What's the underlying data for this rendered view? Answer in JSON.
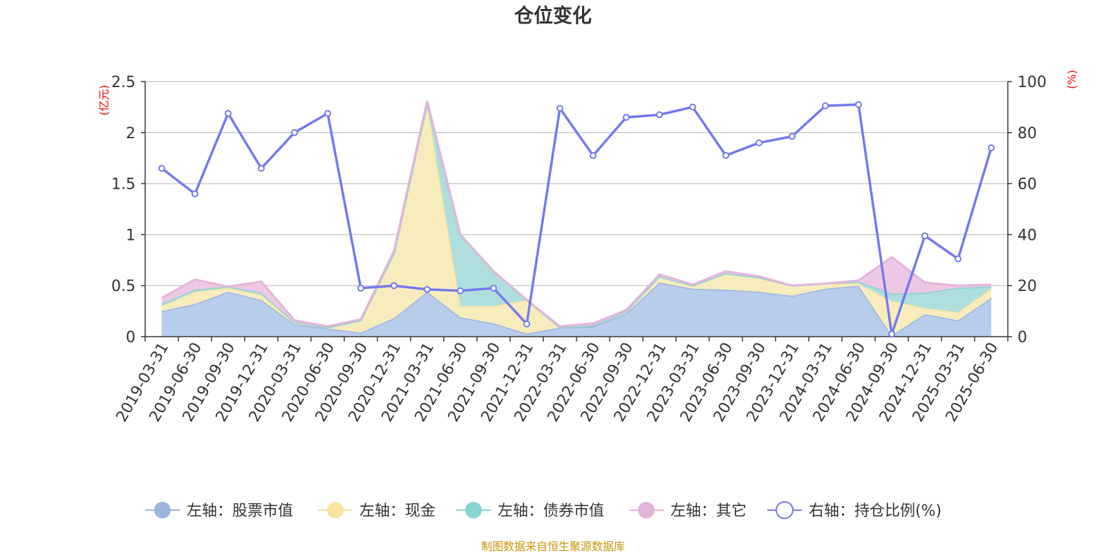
{
  "chart_data": {
    "type": "area",
    "title": "仓位变化",
    "left_unit": "(亿元)",
    "right_unit": "(%)",
    "source": "制图数据来自恒生聚源数据库",
    "x": [
      "2019-03-31",
      "2019-06-30",
      "2019-09-30",
      "2019-12-31",
      "2020-03-31",
      "2020-06-30",
      "2020-09-30",
      "2020-12-31",
      "2021-03-31",
      "2021-06-30",
      "2021-09-30",
      "2021-12-31",
      "2022-03-31",
      "2022-06-30",
      "2022-09-30",
      "2022-12-31",
      "2023-03-31",
      "2023-06-30",
      "2023-09-30",
      "2023-12-31",
      "2024-03-31",
      "2024-06-30",
      "2024-09-30",
      "2024-12-31",
      "2025-03-31",
      "2025-06-30"
    ],
    "x_tick_labels": [
      "2019-03-31",
      "2019-06-30",
      "2019-09-30",
      "2019-12-31",
      "2020-03-31",
      "2020-06-30",
      "2020-09-30",
      "2020-12-31",
      "2021-03-31",
      "2021-06-30",
      "2021-09-30",
      "2021-12-31",
      "2022-03-31",
      "2022-06-30",
      "2022-09-30",
      "2022-12-31",
      "2023-03-31",
      "2023-06-30",
      "2023-09-30",
      "2023-12-31",
      "2024-03-31",
      "2024-06-30",
      "2024-09-30",
      "2024-12-31",
      "2025-03-31",
      "2025-06-30"
    ],
    "left_axis": {
      "ylim": [
        0,
        2.5
      ],
      "ticks": [
        "0",
        "0.5",
        "1",
        "1.5",
        "2",
        "2.5"
      ]
    },
    "right_axis": {
      "ylim": [
        0,
        100
      ],
      "ticks": [
        "0",
        "20",
        "40",
        "60",
        "80",
        "100"
      ]
    },
    "grid": true,
    "legend_position": "bottom",
    "series": [
      {
        "name": "左轴：股票市值",
        "axis": "left",
        "kind": "stacked-area",
        "color": "#9bb5e0",
        "fill": "#b8cdeb",
        "values": [
          0.25,
          0.32,
          0.44,
          0.36,
          0.12,
          0.08,
          0.04,
          0.18,
          0.44,
          0.19,
          0.13,
          0.03,
          0.09,
          0.1,
          0.23,
          0.53,
          0.47,
          0.46,
          0.44,
          0.4,
          0.47,
          0.5,
          0.01,
          0.22,
          0.16,
          0.38
        ]
      },
      {
        "name": "左轴：现金",
        "axis": "left",
        "kind": "stacked-area",
        "color": "#f7e4a0",
        "fill": "#f8ecbd",
        "values": [
          0.05,
          0.12,
          0.04,
          0.05,
          0.02,
          0.01,
          0.12,
          0.64,
          1.85,
          0.11,
          0.17,
          0.33,
          0.0,
          0.01,
          0.02,
          0.06,
          0.03,
          0.16,
          0.14,
          0.1,
          0.05,
          0.02,
          0.34,
          0.06,
          0.08,
          0.09
        ]
      },
      {
        "name": "左轴：债券市值",
        "axis": "left",
        "kind": "stacked-area",
        "color": "#86d4d2",
        "fill": "#aedfdd",
        "values": [
          0.02,
          0.02,
          0.01,
          0.02,
          0.0,
          0.0,
          0.0,
          0.0,
          0.0,
          0.7,
          0.34,
          0.0,
          0.0,
          0.0,
          0.0,
          0.0,
          0.0,
          0.0,
          0.0,
          0.0,
          0.0,
          0.02,
          0.07,
          0.15,
          0.24,
          0.02
        ]
      },
      {
        "name": "左轴：其它",
        "axis": "left",
        "kind": "stacked-area",
        "color": "#e3b4d9",
        "fill": "#ecc8e4",
        "values": [
          0.06,
          0.1,
          0.0,
          0.11,
          0.02,
          0.01,
          0.01,
          0.02,
          0.02,
          0.0,
          0.0,
          0.0,
          0.01,
          0.02,
          0.01,
          0.02,
          0.01,
          0.02,
          0.01,
          0.0,
          0.0,
          0.01,
          0.36,
          0.1,
          0.02,
          0.02
        ]
      },
      {
        "name": "右轴：持仓比例(%)",
        "axis": "right",
        "kind": "line",
        "color": "#7478f0",
        "values": [
          66,
          56,
          87.5,
          66,
          80,
          87.5,
          19,
          20,
          18.5,
          18,
          19,
          5,
          89.5,
          71,
          86,
          87,
          90,
          71,
          76,
          78.5,
          90.5,
          91,
          1,
          39.5,
          30.5,
          74
        ]
      }
    ]
  }
}
